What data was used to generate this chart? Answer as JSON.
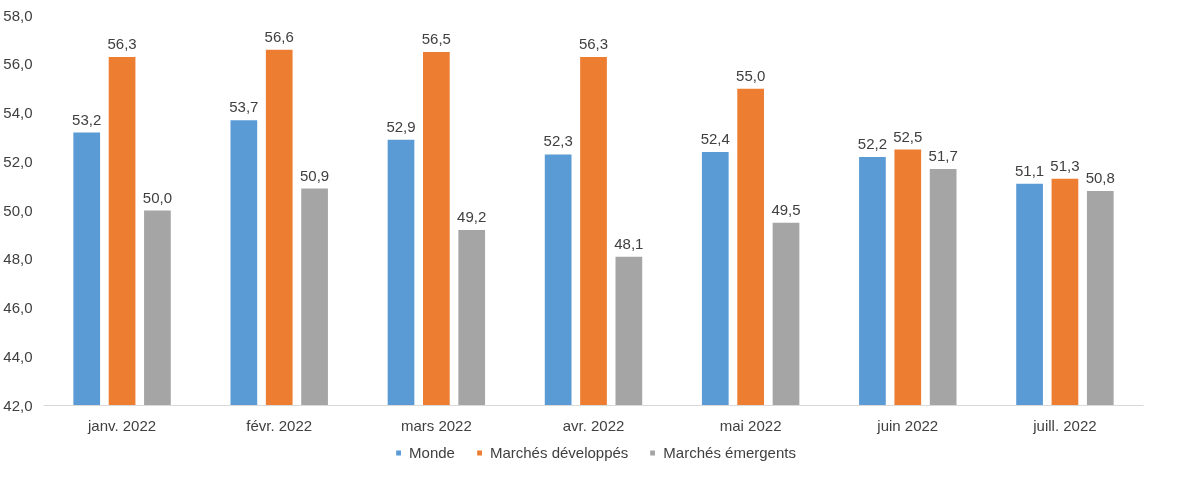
{
  "chart_data": {
    "type": "bar",
    "categories": [
      "janv. 2022",
      "févr. 2022",
      "mars 2022",
      "avr. 2022",
      "mai 2022",
      "juin 2022",
      "juill. 2022"
    ],
    "series": [
      {
        "name": "Monde",
        "color": "#5b9bd5",
        "values": [
          53.2,
          53.7,
          52.9,
          52.3,
          52.4,
          52.2,
          51.1
        ],
        "value_labels": [
          "53,2",
          "53,7",
          "52,9",
          "52,3",
          "52,4",
          "52,2",
          "51,1"
        ]
      },
      {
        "name": "Marchés développés",
        "color": "#ed7d31",
        "values": [
          56.3,
          56.6,
          56.5,
          56.3,
          55.0,
          52.5,
          51.3
        ],
        "value_labels": [
          "56,3",
          "56,6",
          "56,5",
          "56,3",
          "55,0",
          "52,5",
          "51,3"
        ]
      },
      {
        "name": "Marchés émergents",
        "color": "#a5a5a5",
        "values": [
          50.0,
          50.9,
          49.2,
          48.1,
          49.5,
          51.7,
          50.8
        ],
        "value_labels": [
          "50,0",
          "50,9",
          "49,2",
          "48,1",
          "49,5",
          "51,7",
          "50,8"
        ]
      }
    ],
    "ylim": [
      42,
      58
    ],
    "yticks": [
      {
        "value": 42,
        "label": "42,0"
      },
      {
        "value": 44,
        "label": "44,0"
      },
      {
        "value": 46,
        "label": "46,0"
      },
      {
        "value": 48,
        "label": "48,0"
      },
      {
        "value": 50,
        "label": "50,0"
      },
      {
        "value": 52,
        "label": "52,0"
      },
      {
        "value": 54,
        "label": "54,0"
      },
      {
        "value": 56,
        "label": "56,0"
      },
      {
        "value": 58,
        "label": "58,0"
      }
    ],
    "grid": false,
    "legend": "bottom"
  }
}
